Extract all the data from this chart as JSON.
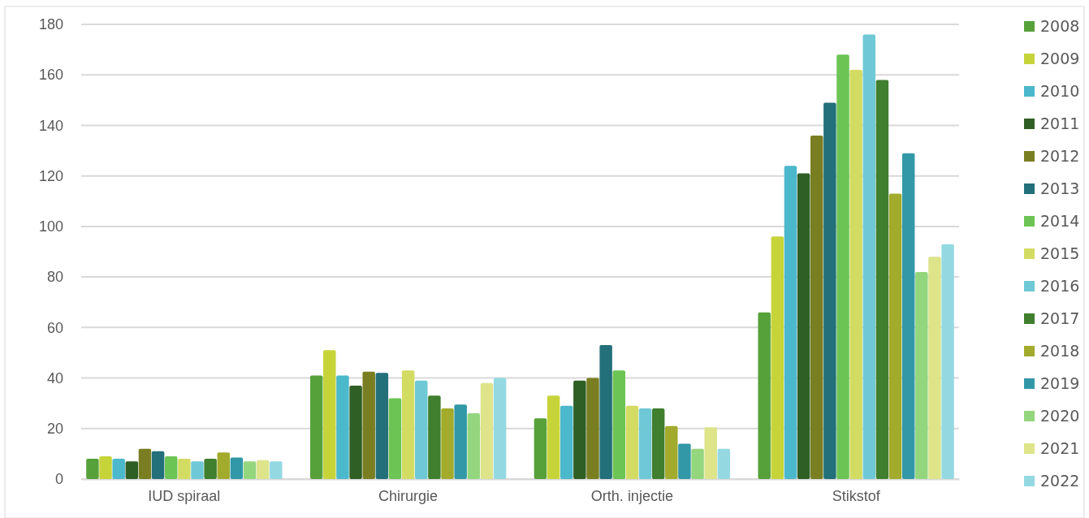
{
  "chart_data": {
    "type": "bar",
    "categories": [
      "IUD spiraal",
      "Chirurgie",
      "Orth. injectie",
      "Stikstof"
    ],
    "ylim": [
      0,
      180
    ],
    "yticks": [
      0,
      20,
      40,
      60,
      80,
      100,
      120,
      140,
      160,
      180
    ],
    "grid": "y",
    "legend": "right",
    "series": [
      {
        "name": "2008",
        "color": "#57a13a",
        "values": [
          8,
          41,
          24,
          66
        ]
      },
      {
        "name": "2009",
        "color": "#c6d43a",
        "values": [
          9,
          51,
          33,
          96
        ]
      },
      {
        "name": "2010",
        "color": "#4bb8cc",
        "values": [
          8,
          41,
          29,
          124
        ]
      },
      {
        "name": "2011",
        "color": "#2f5f24",
        "values": [
          7,
          37,
          39,
          121
        ]
      },
      {
        "name": "2012",
        "color": "#7a7e22",
        "values": [
          12,
          42.5,
          40,
          136
        ]
      },
      {
        "name": "2013",
        "color": "#236f7a",
        "values": [
          11,
          42,
          53,
          149
        ]
      },
      {
        "name": "2014",
        "color": "#6cc454",
        "values": [
          9,
          32,
          43,
          168
        ]
      },
      {
        "name": "2015",
        "color": "#d3dc62",
        "values": [
          8,
          43,
          29,
          162
        ]
      },
      {
        "name": "2016",
        "color": "#6fc8d6",
        "values": [
          7,
          39,
          28,
          176
        ]
      },
      {
        "name": "2017",
        "color": "#3f7f2e",
        "values": [
          8,
          33,
          28,
          158
        ]
      },
      {
        "name": "2018",
        "color": "#a2ab2c",
        "values": [
          10.5,
          28,
          21,
          113
        ]
      },
      {
        "name": "2019",
        "color": "#3298a8",
        "values": [
          8.5,
          29.5,
          14,
          129
        ]
      },
      {
        "name": "2020",
        "color": "#94d67d",
        "values": [
          7,
          26,
          12,
          82
        ]
      },
      {
        "name": "2021",
        "color": "#dde48a",
        "values": [
          7.5,
          38,
          20.5,
          88
        ]
      },
      {
        "name": "2022",
        "color": "#94d9e2",
        "values": [
          7,
          40,
          12,
          93
        ]
      }
    ]
  }
}
